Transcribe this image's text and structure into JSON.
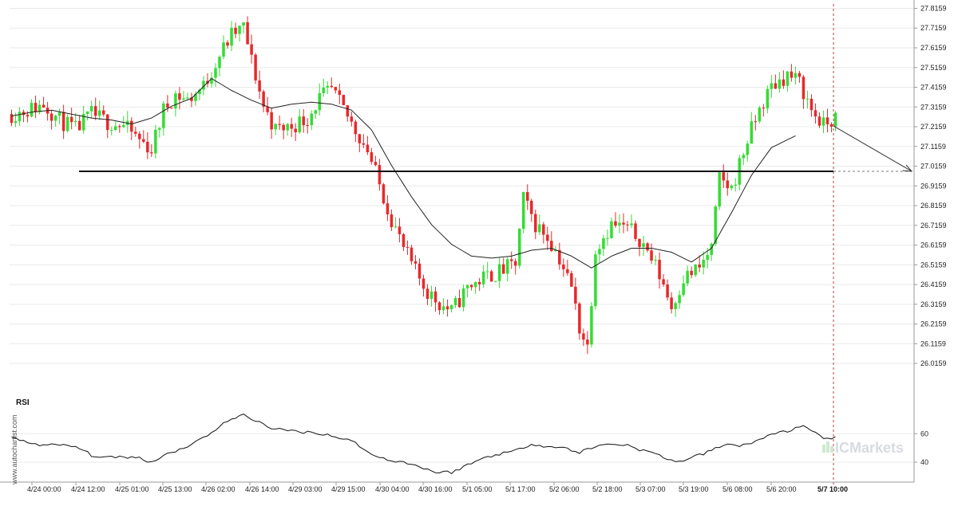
{
  "chart_data": [
    {
      "type": "candlestick",
      "ylim": [
        25.98,
        27.83
      ],
      "y_ticks": [
        "27.8159",
        "27.7159",
        "27.6159",
        "27.5159",
        "27.4159",
        "27.3159",
        "27.2159",
        "27.1159",
        "27.0159",
        "26.9159",
        "26.8159",
        "26.7159",
        "26.6159",
        "26.5159",
        "26.4159",
        "26.3159",
        "26.2159",
        "26.1159",
        "26.0159"
      ],
      "x_ticks": [
        "4/24 00:00",
        "4/24 12:00",
        "4/25 01:00",
        "4/25 13:00",
        "4/26 02:00",
        "4/26 14:00",
        "4/29 03:00",
        "4/29 15:00",
        "4/30 04:00",
        "4/30 16:00",
        "5/1 05:00",
        "5/1 17:00",
        "5/2 06:00",
        "5/2 18:00",
        "5/3 07:00",
        "5/3 19:00",
        "5/6 08:00",
        "5/6 20:00"
      ],
      "current_time_label": "5/7 10:00",
      "support_level": 26.99,
      "projection": {
        "from": 27.22,
        "to": 26.99,
        "direction": "down"
      },
      "moving_average_anchors": [
        [
          0,
          27.27
        ],
        [
          5,
          27.29
        ],
        [
          10,
          27.3
        ],
        [
          15,
          27.28
        ],
        [
          20,
          27.26
        ],
        [
          25,
          27.25
        ],
        [
          30,
          27.23
        ],
        [
          35,
          27.26
        ],
        [
          40,
          27.32
        ],
        [
          45,
          27.36
        ],
        [
          50,
          27.46
        ],
        [
          55,
          27.4
        ],
        [
          60,
          27.35
        ],
        [
          65,
          27.31
        ],
        [
          70,
          27.33
        ],
        [
          75,
          27.34
        ],
        [
          80,
          27.33
        ],
        [
          85,
          27.3
        ],
        [
          90,
          27.2
        ],
        [
          95,
          27.02
        ],
        [
          100,
          26.86
        ],
        [
          105,
          26.72
        ],
        [
          110,
          26.62
        ],
        [
          115,
          26.56
        ],
        [
          120,
          26.55
        ],
        [
          125,
          26.56
        ],
        [
          130,
          26.59
        ],
        [
          135,
          26.6
        ],
        [
          140,
          26.56
        ],
        [
          145,
          26.5
        ],
        [
          150,
          26.56
        ],
        [
          155,
          26.6
        ],
        [
          160,
          26.6
        ],
        [
          165,
          26.58
        ],
        [
          170,
          26.53
        ],
        [
          175,
          26.6
        ],
        [
          180,
          26.78
        ],
        [
          185,
          26.97
        ],
        [
          190,
          27.11
        ],
        [
          196,
          27.17
        ]
      ],
      "price_anchors": [
        [
          0,
          27.28
        ],
        [
          4,
          27.3
        ],
        [
          8,
          27.33
        ],
        [
          12,
          27.25
        ],
        [
          16,
          27.2
        ],
        [
          20,
          27.28
        ],
        [
          24,
          27.24
        ],
        [
          28,
          27.22
        ],
        [
          32,
          27.15
        ],
        [
          35,
          27.1
        ],
        [
          38,
          27.3
        ],
        [
          41,
          27.38
        ],
        [
          44,
          27.35
        ],
        [
          48,
          27.42
        ],
        [
          52,
          27.58
        ],
        [
          55,
          27.68
        ],
        [
          58,
          27.72
        ],
        [
          60,
          27.55
        ],
        [
          63,
          27.32
        ],
        [
          66,
          27.2
        ],
        [
          70,
          27.22
        ],
        [
          74,
          27.26
        ],
        [
          77,
          27.36
        ],
        [
          80,
          27.4
        ],
        [
          83,
          27.3
        ],
        [
          86,
          27.2
        ],
        [
          89,
          27.1
        ],
        [
          92,
          26.92
        ],
        [
          95,
          26.75
        ],
        [
          98,
          26.6
        ],
        [
          101,
          26.48
        ],
        [
          104,
          26.38
        ],
        [
          107,
          26.32
        ],
        [
          110,
          26.28
        ],
        [
          114,
          26.4
        ],
        [
          118,
          26.45
        ],
        [
          122,
          26.48
        ],
        [
          126,
          26.52
        ],
        [
          128,
          26.85
        ],
        [
          131,
          26.72
        ],
        [
          134,
          26.66
        ],
        [
          137,
          26.55
        ],
        [
          140,
          26.4
        ],
        [
          142,
          26.2
        ],
        [
          144,
          26.1
        ],
        [
          146,
          26.6
        ],
        [
          150,
          26.72
        ],
        [
          154,
          26.7
        ],
        [
          157,
          26.65
        ],
        [
          160,
          26.55
        ],
        [
          163,
          26.42
        ],
        [
          165,
          26.3
        ],
        [
          168,
          26.45
        ],
        [
          172,
          26.5
        ],
        [
          175,
          26.6
        ],
        [
          177,
          26.95
        ],
        [
          180,
          26.9
        ],
        [
          184,
          27.15
        ],
        [
          187,
          27.3
        ],
        [
          190,
          27.42
        ],
        [
          194,
          27.48
        ],
        [
          197,
          27.44
        ],
        [
          200,
          27.3
        ],
        [
          203,
          27.22
        ],
        [
          206,
          27.26
        ]
      ],
      "rsi": {
        "title": "RSI",
        "ylim": [
          30,
          78
        ],
        "y_ticks": [
          "60",
          "40"
        ],
        "anchors": [
          [
            0,
            57
          ],
          [
            4,
            54
          ],
          [
            8,
            52
          ],
          [
            12,
            52
          ],
          [
            16,
            51
          ],
          [
            20,
            45
          ],
          [
            24,
            43
          ],
          [
            28,
            44
          ],
          [
            32,
            43
          ],
          [
            35,
            40
          ],
          [
            38,
            45
          ],
          [
            42,
            49
          ],
          [
            46,
            54
          ],
          [
            50,
            61
          ],
          [
            54,
            69
          ],
          [
            58,
            73
          ],
          [
            62,
            68
          ],
          [
            66,
            63
          ],
          [
            70,
            62
          ],
          [
            74,
            61
          ],
          [
            78,
            60
          ],
          [
            82,
            57
          ],
          [
            86,
            54
          ],
          [
            90,
            45
          ],
          [
            94,
            42
          ],
          [
            98,
            40
          ],
          [
            102,
            37
          ],
          [
            106,
            33
          ],
          [
            110,
            33
          ],
          [
            114,
            38
          ],
          [
            118,
            43
          ],
          [
            122,
            46
          ],
          [
            126,
            48
          ],
          [
            130,
            53
          ],
          [
            134,
            51
          ],
          [
            138,
            50
          ],
          [
            142,
            47
          ],
          [
            146,
            51
          ],
          [
            150,
            53
          ],
          [
            154,
            52
          ],
          [
            158,
            48
          ],
          [
            162,
            45
          ],
          [
            166,
            40
          ],
          [
            170,
            43
          ],
          [
            174,
            47
          ],
          [
            178,
            52
          ],
          [
            182,
            52
          ],
          [
            186,
            54
          ],
          [
            190,
            60
          ],
          [
            194,
            62
          ],
          [
            198,
            65
          ],
          [
            201,
            60
          ],
          [
            203,
            56
          ],
          [
            206,
            58
          ]
        ]
      },
      "brand": "ICMarkets",
      "side_watermark": "www.autochartist.com",
      "colors": {
        "up": "#33dd33",
        "down": "#e8282a",
        "ma": "#222222",
        "support": "#111111",
        "grid": "#e9e9e9",
        "axis": "#999999"
      }
    }
  ]
}
